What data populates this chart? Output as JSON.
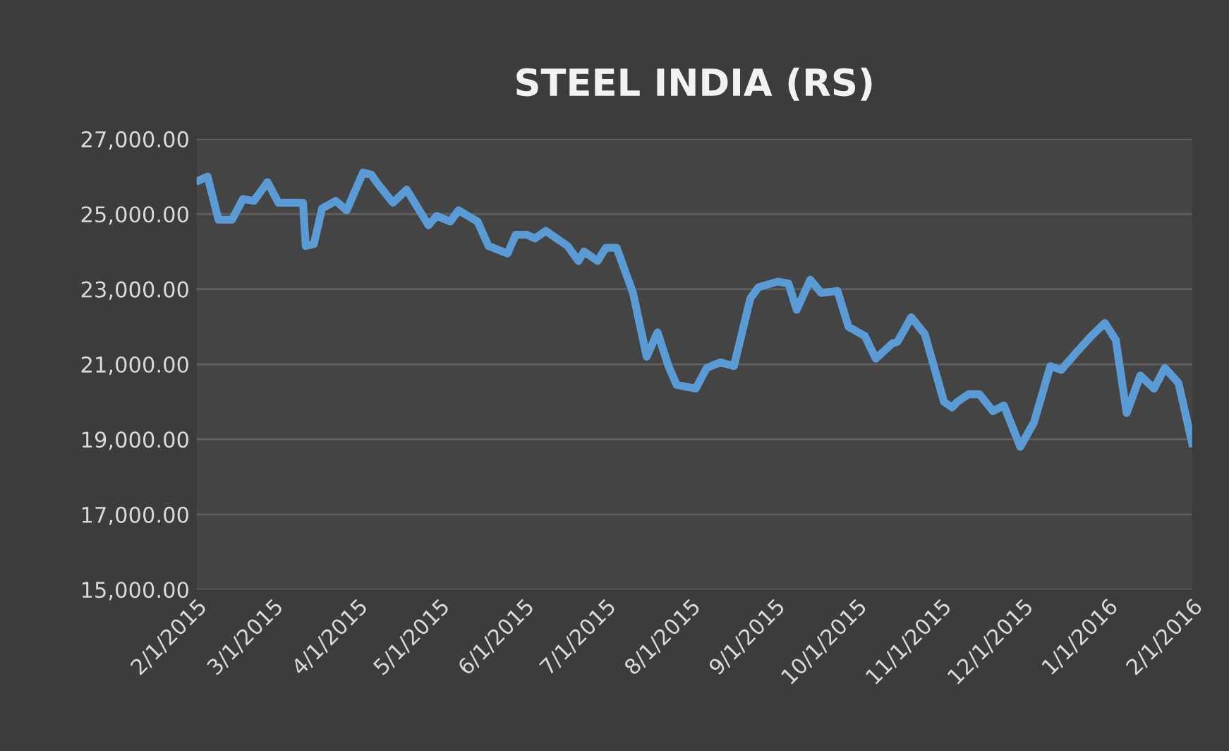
{
  "chart_data": {
    "type": "line",
    "title": "STEEL INDIA (RS)",
    "x": [
      "2015-02-02",
      "2015-02-05",
      "2015-02-09",
      "2015-02-14",
      "2015-02-18",
      "2015-02-22",
      "2015-02-27",
      "2015-03-03",
      "2015-03-12",
      "2015-03-13",
      "2015-03-16",
      "2015-03-19",
      "2015-03-24",
      "2015-03-28",
      "2015-04-03",
      "2015-04-06",
      "2015-04-09",
      "2015-04-14",
      "2015-04-19",
      "2015-04-27",
      "2015-04-30",
      "2015-05-05",
      "2015-05-08",
      "2015-05-15",
      "2015-05-19",
      "2015-05-26",
      "2015-05-29",
      "2015-06-02",
      "2015-06-05",
      "2015-06-09",
      "2015-06-17",
      "2015-06-21",
      "2015-06-23",
      "2015-06-28",
      "2015-07-01",
      "2015-07-05",
      "2015-07-11",
      "2015-07-16",
      "2015-07-20",
      "2015-07-24",
      "2015-07-27",
      "2015-08-03",
      "2015-08-07",
      "2015-08-12",
      "2015-08-17",
      "2015-08-23",
      "2015-08-26",
      "2015-09-02",
      "2015-09-06",
      "2015-09-09",
      "2015-09-14",
      "2015-09-18",
      "2015-09-24",
      "2015-09-28",
      "2015-10-04",
      "2015-10-08",
      "2015-10-14",
      "2015-10-16",
      "2015-10-21",
      "2015-10-26",
      "2015-11-02",
      "2015-11-05",
      "2015-11-07",
      "2015-11-11",
      "2015-11-15",
      "2015-11-20",
      "2015-11-24",
      "2015-11-30",
      "2015-12-05",
      "2015-12-11",
      "2015-12-15",
      "2015-12-21",
      "2015-12-26",
      "2015-12-31",
      "2016-01-04",
      "2016-01-08",
      "2016-01-13",
      "2016-01-18",
      "2016-01-22",
      "2016-01-27",
      "2016-02-01"
    ],
    "series": [
      {
        "color": "#5b9bd5",
        "values": [
          25900,
          26000,
          24850,
          24850,
          25400,
          25350,
          25850,
          25300,
          25300,
          24150,
          24200,
          25150,
          25350,
          25100,
          26100,
          26050,
          25750,
          25300,
          25650,
          24700,
          24950,
          24800,
          25100,
          24800,
          24150,
          23950,
          24450,
          24450,
          24350,
          24550,
          24150,
          23750,
          24000,
          23750,
          24100,
          24100,
          22900,
          21200,
          21850,
          20950,
          20450,
          20350,
          20900,
          21050,
          20950,
          22750,
          23050,
          23200,
          23150,
          22450,
          23250,
          22900,
          22950,
          22000,
          21750,
          21150,
          21550,
          21600,
          22250,
          21800,
          20000,
          19850,
          20000,
          20200,
          20200,
          19750,
          19900,
          18800,
          19450,
          20950,
          20850,
          21350,
          21750,
          22100,
          21650,
          19700,
          20700,
          20350,
          20900,
          20500,
          18900
        ]
      }
    ],
    "ylim": [
      15000,
      27000
    ],
    "yticks": [
      {
        "value": 15000,
        "label": "15,000.00"
      },
      {
        "value": 17000,
        "label": "17,000.00"
      },
      {
        "value": 19000,
        "label": "19,000.00"
      },
      {
        "value": 21000,
        "label": "21,000.00"
      },
      {
        "value": 23000,
        "label": "23,000.00"
      },
      {
        "value": 25000,
        "label": "25,000.00"
      },
      {
        "value": 27000,
        "label": "27,000.00"
      }
    ],
    "xlim": [
      "2015-02-01",
      "2016-02-01"
    ],
    "xticks": [
      {
        "value": "2015-02-01",
        "label": "2/1/2015"
      },
      {
        "value": "2015-03-01",
        "label": "3/1/2015"
      },
      {
        "value": "2015-04-01",
        "label": "4/1/2015"
      },
      {
        "value": "2015-05-01",
        "label": "5/1/2015"
      },
      {
        "value": "2015-06-01",
        "label": "6/1/2015"
      },
      {
        "value": "2015-07-01",
        "label": "7/1/2015"
      },
      {
        "value": "2015-08-01",
        "label": "8/1/2015"
      },
      {
        "value": "2015-09-01",
        "label": "9/1/2015"
      },
      {
        "value": "2015-10-01",
        "label": "10/1/2015"
      },
      {
        "value": "2015-11-01",
        "label": "11/1/2015"
      },
      {
        "value": "2015-12-01",
        "label": "12/1/2015"
      },
      {
        "value": "2016-01-01",
        "label": "1/1/2016"
      },
      {
        "value": "2016-02-01",
        "label": "2/1/2016"
      }
    ],
    "grid": "y",
    "legend": false,
    "marker": "none",
    "line_style": "solid"
  }
}
